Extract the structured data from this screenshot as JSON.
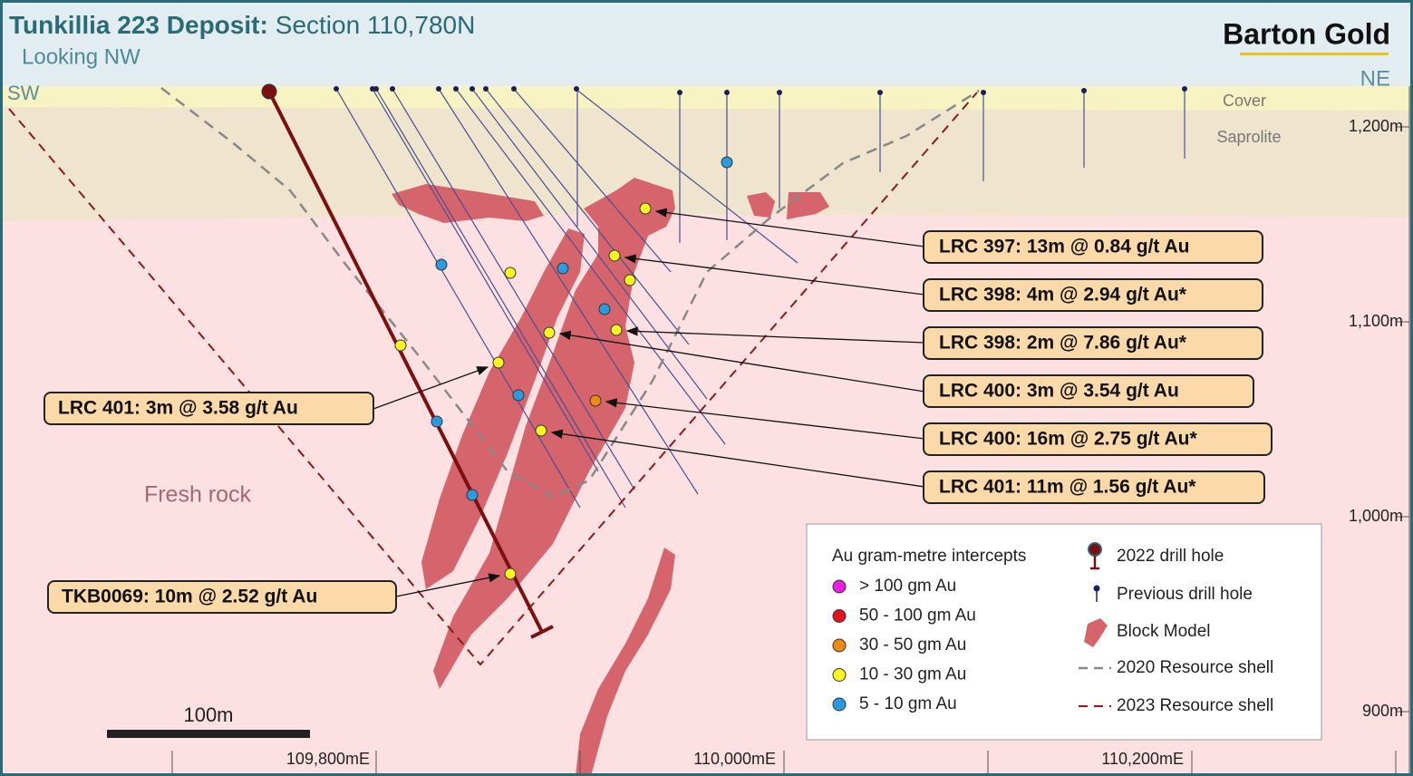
{
  "header": {
    "title_bold": "Tunkillia 223 Deposit:",
    "title_rest": "Section 110,780N",
    "subtitle": "Looking NW",
    "logo": "Barton Gold"
  },
  "directions": {
    "left": "SW",
    "right": "NE"
  },
  "layers": {
    "cover": "Cover",
    "saprolite": "Saprolite",
    "fresh": "Fresh rock"
  },
  "elevation_labels": [
    "1,200m",
    "1,100m",
    "1,000m",
    "900m"
  ],
  "easting_labels": [
    "109,800mE",
    "110,000mE",
    "110,200mE"
  ],
  "scale_bar": "100m",
  "intercepts": [
    "LRC 397: 13m @ 0.84 g/t Au",
    "LRC 398: 4m @ 2.94 g/t Au*",
    "LRC 398: 2m @ 7.86 g/t Au*",
    "LRC 400: 3m @ 3.54 g/t Au",
    "LRC 400: 16m @ 2.75 g/t Au*",
    "LRC 401: 11m @ 1.56 g/t Au*",
    "LRC 401: 3m @ 3.58 g/t Au",
    "TKB0069: 10m @ 2.52 g/t Au"
  ],
  "legend": {
    "title": "Au gram-metre intercepts",
    "grades": [
      {
        "label": "> 100 gm Au",
        "color": "#e81ee0"
      },
      {
        "label": "50 - 100 gm Au",
        "color": "#e4141e"
      },
      {
        "label": "30 - 50 gm Au",
        "color": "#f08a14"
      },
      {
        "label": "10 - 30 gm Au",
        "color": "#fdf51e"
      },
      {
        "label": "5 - 10 gm Au",
        "color": "#2a9be0"
      }
    ],
    "symbols": [
      "2022 drill hole",
      "Previous drill hole",
      "Block Model",
      "2020 Resource shell",
      "2023 Resource shell"
    ]
  }
}
